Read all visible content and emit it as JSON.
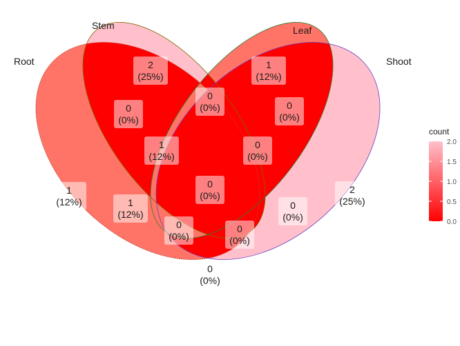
{
  "diagram": {
    "sets": [
      {
        "id": "root",
        "name": "Root"
      },
      {
        "id": "stem",
        "name": "Stem"
      },
      {
        "id": "leaf",
        "name": "Leaf"
      },
      {
        "id": "shoot",
        "name": "Shoot"
      }
    ],
    "regions": [
      {
        "id": "stem_only",
        "sets": [
          "stem"
        ],
        "count": "2",
        "percent": "(25%)"
      },
      {
        "id": "leaf_only",
        "sets": [
          "leaf"
        ],
        "count": "1",
        "percent": "(12%)"
      },
      {
        "id": "root_only",
        "sets": [
          "root"
        ],
        "count": "1",
        "percent": "(12%)"
      },
      {
        "id": "shoot_only",
        "sets": [
          "shoot"
        ],
        "count": "2",
        "percent": "(25%)"
      },
      {
        "id": "root_stem",
        "sets": [
          "root",
          "stem"
        ],
        "count": "0",
        "percent": "(0%)"
      },
      {
        "id": "stem_leaf",
        "sets": [
          "stem",
          "leaf"
        ],
        "count": "0",
        "percent": "(0%)"
      },
      {
        "id": "leaf_shoot",
        "sets": [
          "leaf",
          "shoot"
        ],
        "count": "0",
        "percent": "(0%)"
      },
      {
        "id": "root_stem_leaf",
        "sets": [
          "root",
          "stem",
          "leaf"
        ],
        "count": "1",
        "percent": "(12%)"
      },
      {
        "id": "stem_leaf_shoot",
        "sets": [
          "stem",
          "leaf",
          "shoot"
        ],
        "count": "0",
        "percent": "(0%)"
      },
      {
        "id": "root_leaf",
        "sets": [
          "root",
          "leaf"
        ],
        "count": "1",
        "percent": "(12%)"
      },
      {
        "id": "all_four",
        "sets": [
          "root",
          "stem",
          "leaf",
          "shoot"
        ],
        "count": "0",
        "percent": "(0%)"
      },
      {
        "id": "stem_shoot",
        "sets": [
          "stem",
          "shoot"
        ],
        "count": "0",
        "percent": "(0%)"
      },
      {
        "id": "root_leaf_shoot",
        "sets": [
          "root",
          "leaf",
          "shoot"
        ],
        "count": "0",
        "percent": "(0%)"
      },
      {
        "id": "root_stem_shoot",
        "sets": [
          "root",
          "stem",
          "shoot"
        ],
        "count": "0",
        "percent": "(0%)"
      },
      {
        "id": "root_shoot",
        "sets": [
          "root",
          "shoot"
        ],
        "count": "0",
        "percent": "(0%)"
      }
    ],
    "legend": {
      "title": "count",
      "ticks": [
        "2.0",
        "1.5",
        "1.0",
        "0.5",
        "0.0"
      ],
      "low_color": "#ff0000",
      "high_color": "#ffc0cb"
    }
  }
}
